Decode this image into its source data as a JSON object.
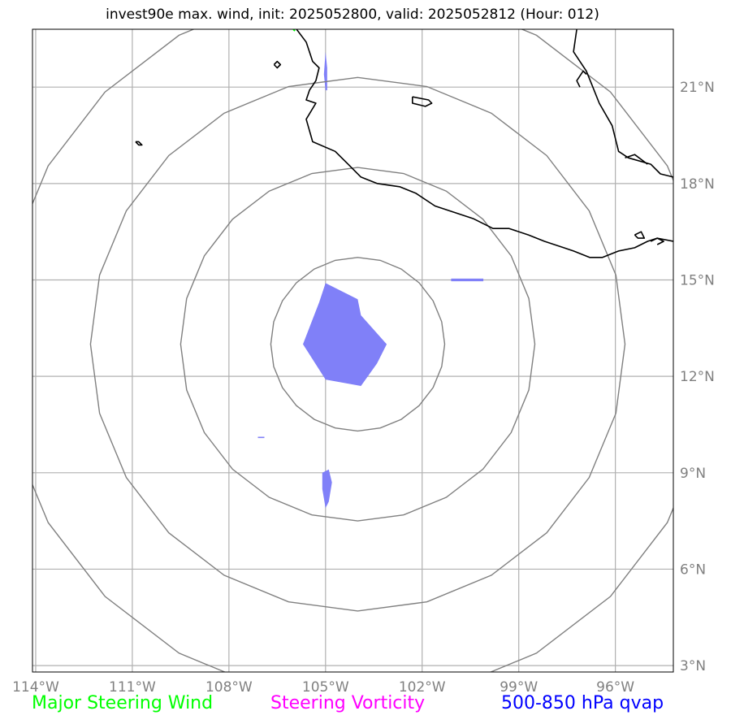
{
  "title": "invest90e max. wind, init: 2025052800, valid: 2025052812 (Hour: 012)",
  "map": {
    "lon_range": [
      -114.1,
      -94.2
    ],
    "lat_range": [
      2.8,
      22.8
    ],
    "lon_ticks": [
      {
        "value": -114,
        "label": "114°W"
      },
      {
        "value": -111,
        "label": "111°W"
      },
      {
        "value": -108,
        "label": "108°W"
      },
      {
        "value": -105,
        "label": "105°W"
      },
      {
        "value": -102,
        "label": "102°W"
      },
      {
        "value": -99,
        "label": "99°W"
      },
      {
        "value": -96,
        "label": "96°W"
      }
    ],
    "lat_ticks": [
      {
        "value": 3,
        "label": "3°N"
      },
      {
        "value": 6,
        "label": "6°N"
      },
      {
        "value": 9,
        "label": "9°N"
      },
      {
        "value": 12,
        "label": "12°N"
      },
      {
        "value": 15,
        "label": "15°N"
      },
      {
        "value": 18,
        "label": "18°N"
      },
      {
        "value": 21,
        "label": "21°N"
      }
    ],
    "center": {
      "lon": -104.0,
      "lat": 13.0
    },
    "range_rings_deg": [
      2.7,
      5.5,
      8.3,
      11.1
    ],
    "colors": {
      "grid": "#b0b0b0",
      "rings": "#808080",
      "coast": "#000000",
      "qvap_fill": "#8080f8",
      "steering_wind": "#00ff00",
      "steering_vorticity": "#ff00ff",
      "qvap_label": "#0000ff"
    },
    "qvap_regions": [
      [
        [
          -105.0,
          14.9
        ],
        [
          -104.0,
          14.4
        ],
        [
          -103.9,
          13.9
        ],
        [
          -103.1,
          13.0
        ],
        [
          -103.4,
          12.4
        ],
        [
          -103.9,
          11.7
        ],
        [
          -105.0,
          11.9
        ],
        [
          -105.7,
          13.0
        ],
        [
          -105.2,
          14.3
        ]
      ],
      [
        [
          -105.1,
          9.0
        ],
        [
          -104.9,
          9.1
        ],
        [
          -104.8,
          8.7
        ],
        [
          -104.9,
          8.1
        ],
        [
          -105.0,
          7.9
        ],
        [
          -105.1,
          8.5
        ],
        [
          -105.1,
          8.9
        ]
      ],
      [
        [
          -105.0,
          22.1
        ],
        [
          -104.95,
          21.6
        ],
        [
          -104.95,
          20.9
        ],
        [
          -105.0,
          20.9
        ],
        [
          -105.05,
          21.4
        ]
      ],
      [
        [
          -101.1,
          15.04
        ],
        [
          -100.1,
          15.04
        ],
        [
          -100.1,
          14.96
        ],
        [
          -101.1,
          14.96
        ]
      ],
      [
        [
          -107.1,
          10.12
        ],
        [
          -106.9,
          10.12
        ],
        [
          -106.9,
          10.08
        ],
        [
          -107.1,
          10.08
        ]
      ]
    ],
    "coastline": [
      [
        [
          -105.9,
          22.8
        ],
        [
          -105.6,
          22.4
        ],
        [
          -105.4,
          21.8
        ],
        [
          -105.2,
          21.6
        ],
        [
          -105.3,
          21.2
        ],
        [
          -105.5,
          20.9
        ],
        [
          -105.6,
          20.6
        ],
        [
          -105.3,
          20.5
        ],
        [
          -105.6,
          20.0
        ],
        [
          -105.4,
          19.3
        ],
        [
          -104.7,
          19.0
        ],
        [
          -104.3,
          18.6
        ],
        [
          -103.9,
          18.2
        ],
        [
          -103.4,
          18.0
        ],
        [
          -102.7,
          17.9
        ],
        [
          -102.2,
          17.7
        ],
        [
          -101.6,
          17.3
        ],
        [
          -101.0,
          17.1
        ],
        [
          -100.4,
          16.9
        ],
        [
          -99.8,
          16.6
        ],
        [
          -99.3,
          16.6
        ],
        [
          -98.7,
          16.4
        ],
        [
          -98.2,
          16.2
        ],
        [
          -97.6,
          16.0
        ],
        [
          -97.3,
          15.9
        ],
        [
          -96.8,
          15.7
        ],
        [
          -96.4,
          15.7
        ],
        [
          -95.9,
          15.9
        ],
        [
          -95.4,
          16.0
        ],
        [
          -95.0,
          16.2
        ],
        [
          -94.7,
          16.3
        ],
        [
          -94.2,
          16.2
        ]
      ],
      [
        [
          -95.4,
          16.4
        ],
        [
          -95.2,
          16.5
        ],
        [
          -95.1,
          16.3
        ],
        [
          -95.3,
          16.3
        ],
        [
          -95.4,
          16.4
        ]
      ],
      [
        [
          -94.9,
          16.2
        ],
        [
          -94.7,
          16.3
        ],
        [
          -94.5,
          16.2
        ],
        [
          -94.7,
          16.1
        ]
      ],
      [
        [
          -97.2,
          22.8
        ],
        [
          -97.3,
          22.1
        ],
        [
          -96.9,
          21.5
        ],
        [
          -96.7,
          21.0
        ],
        [
          -96.5,
          20.5
        ],
        [
          -96.1,
          19.8
        ],
        [
          -95.9,
          19.0
        ],
        [
          -95.6,
          18.8
        ],
        [
          -94.9,
          18.6
        ],
        [
          -94.6,
          18.3
        ],
        [
          -94.2,
          18.2
        ]
      ],
      [
        [
          -96.9,
          21.4
        ],
        [
          -97.0,
          21.5
        ],
        [
          -97.2,
          21.2
        ],
        [
          -97.1,
          21.0
        ]
      ],
      [
        [
          -95.0,
          18.6
        ],
        [
          -95.4,
          18.9
        ],
        [
          -95.7,
          18.8
        ]
      ],
      [
        [
          -102.3,
          20.7
        ],
        [
          -101.8,
          20.6
        ],
        [
          -101.7,
          20.5
        ],
        [
          -101.9,
          20.4
        ],
        [
          -102.3,
          20.5
        ],
        [
          -102.3,
          20.7
        ]
      ],
      [
        [
          -106.6,
          21.7
        ],
        [
          -106.5,
          21.8
        ],
        [
          -106.4,
          21.7
        ],
        [
          -106.5,
          21.6
        ],
        [
          -106.6,
          21.7
        ]
      ],
      [
        [
          -110.9,
          19.3
        ],
        [
          -110.8,
          19.3
        ],
        [
          -110.7,
          19.2
        ],
        [
          -110.8,
          19.2
        ],
        [
          -110.9,
          19.3
        ]
      ]
    ],
    "steering_wind_marks": [
      [
        [
          -106.0,
          22.8
        ],
        [
          -105.95,
          22.75
        ]
      ]
    ]
  },
  "legend": {
    "major_steering_wind": "Major Steering Wind",
    "steering_vorticity": "Steering Vorticity",
    "qvap": "500-850 hPa qvap"
  }
}
